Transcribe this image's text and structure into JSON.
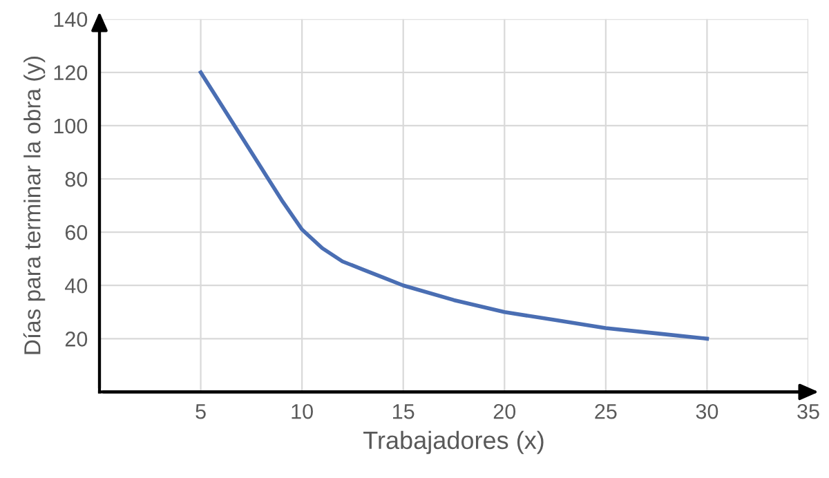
{
  "chart_data": {
    "type": "line",
    "xlabel": "Trabajadores (x)",
    "ylabel": "Días para terminar la obra (y)",
    "x": [
      5,
      6,
      7,
      8,
      9,
      10,
      11,
      12,
      13,
      14,
      15,
      17.5,
      20,
      22.5,
      25,
      27.5,
      30
    ],
    "series": [
      {
        "color": "#4a6eb3",
        "values": [
          120,
          108,
          96,
          84,
          72,
          61,
          54,
          49,
          46,
          43,
          40,
          34.5,
          30,
          27,
          24,
          22,
          20
        ]
      }
    ],
    "xlim": [
      0,
      35
    ],
    "ylim": [
      0,
      140
    ],
    "xticks": [
      5,
      10,
      15,
      20,
      25,
      30,
      35
    ],
    "yticks": [
      20,
      40,
      60,
      80,
      100,
      120,
      140
    ],
    "grid": true,
    "legend": false,
    "marker": "none",
    "line_style": "solid"
  }
}
